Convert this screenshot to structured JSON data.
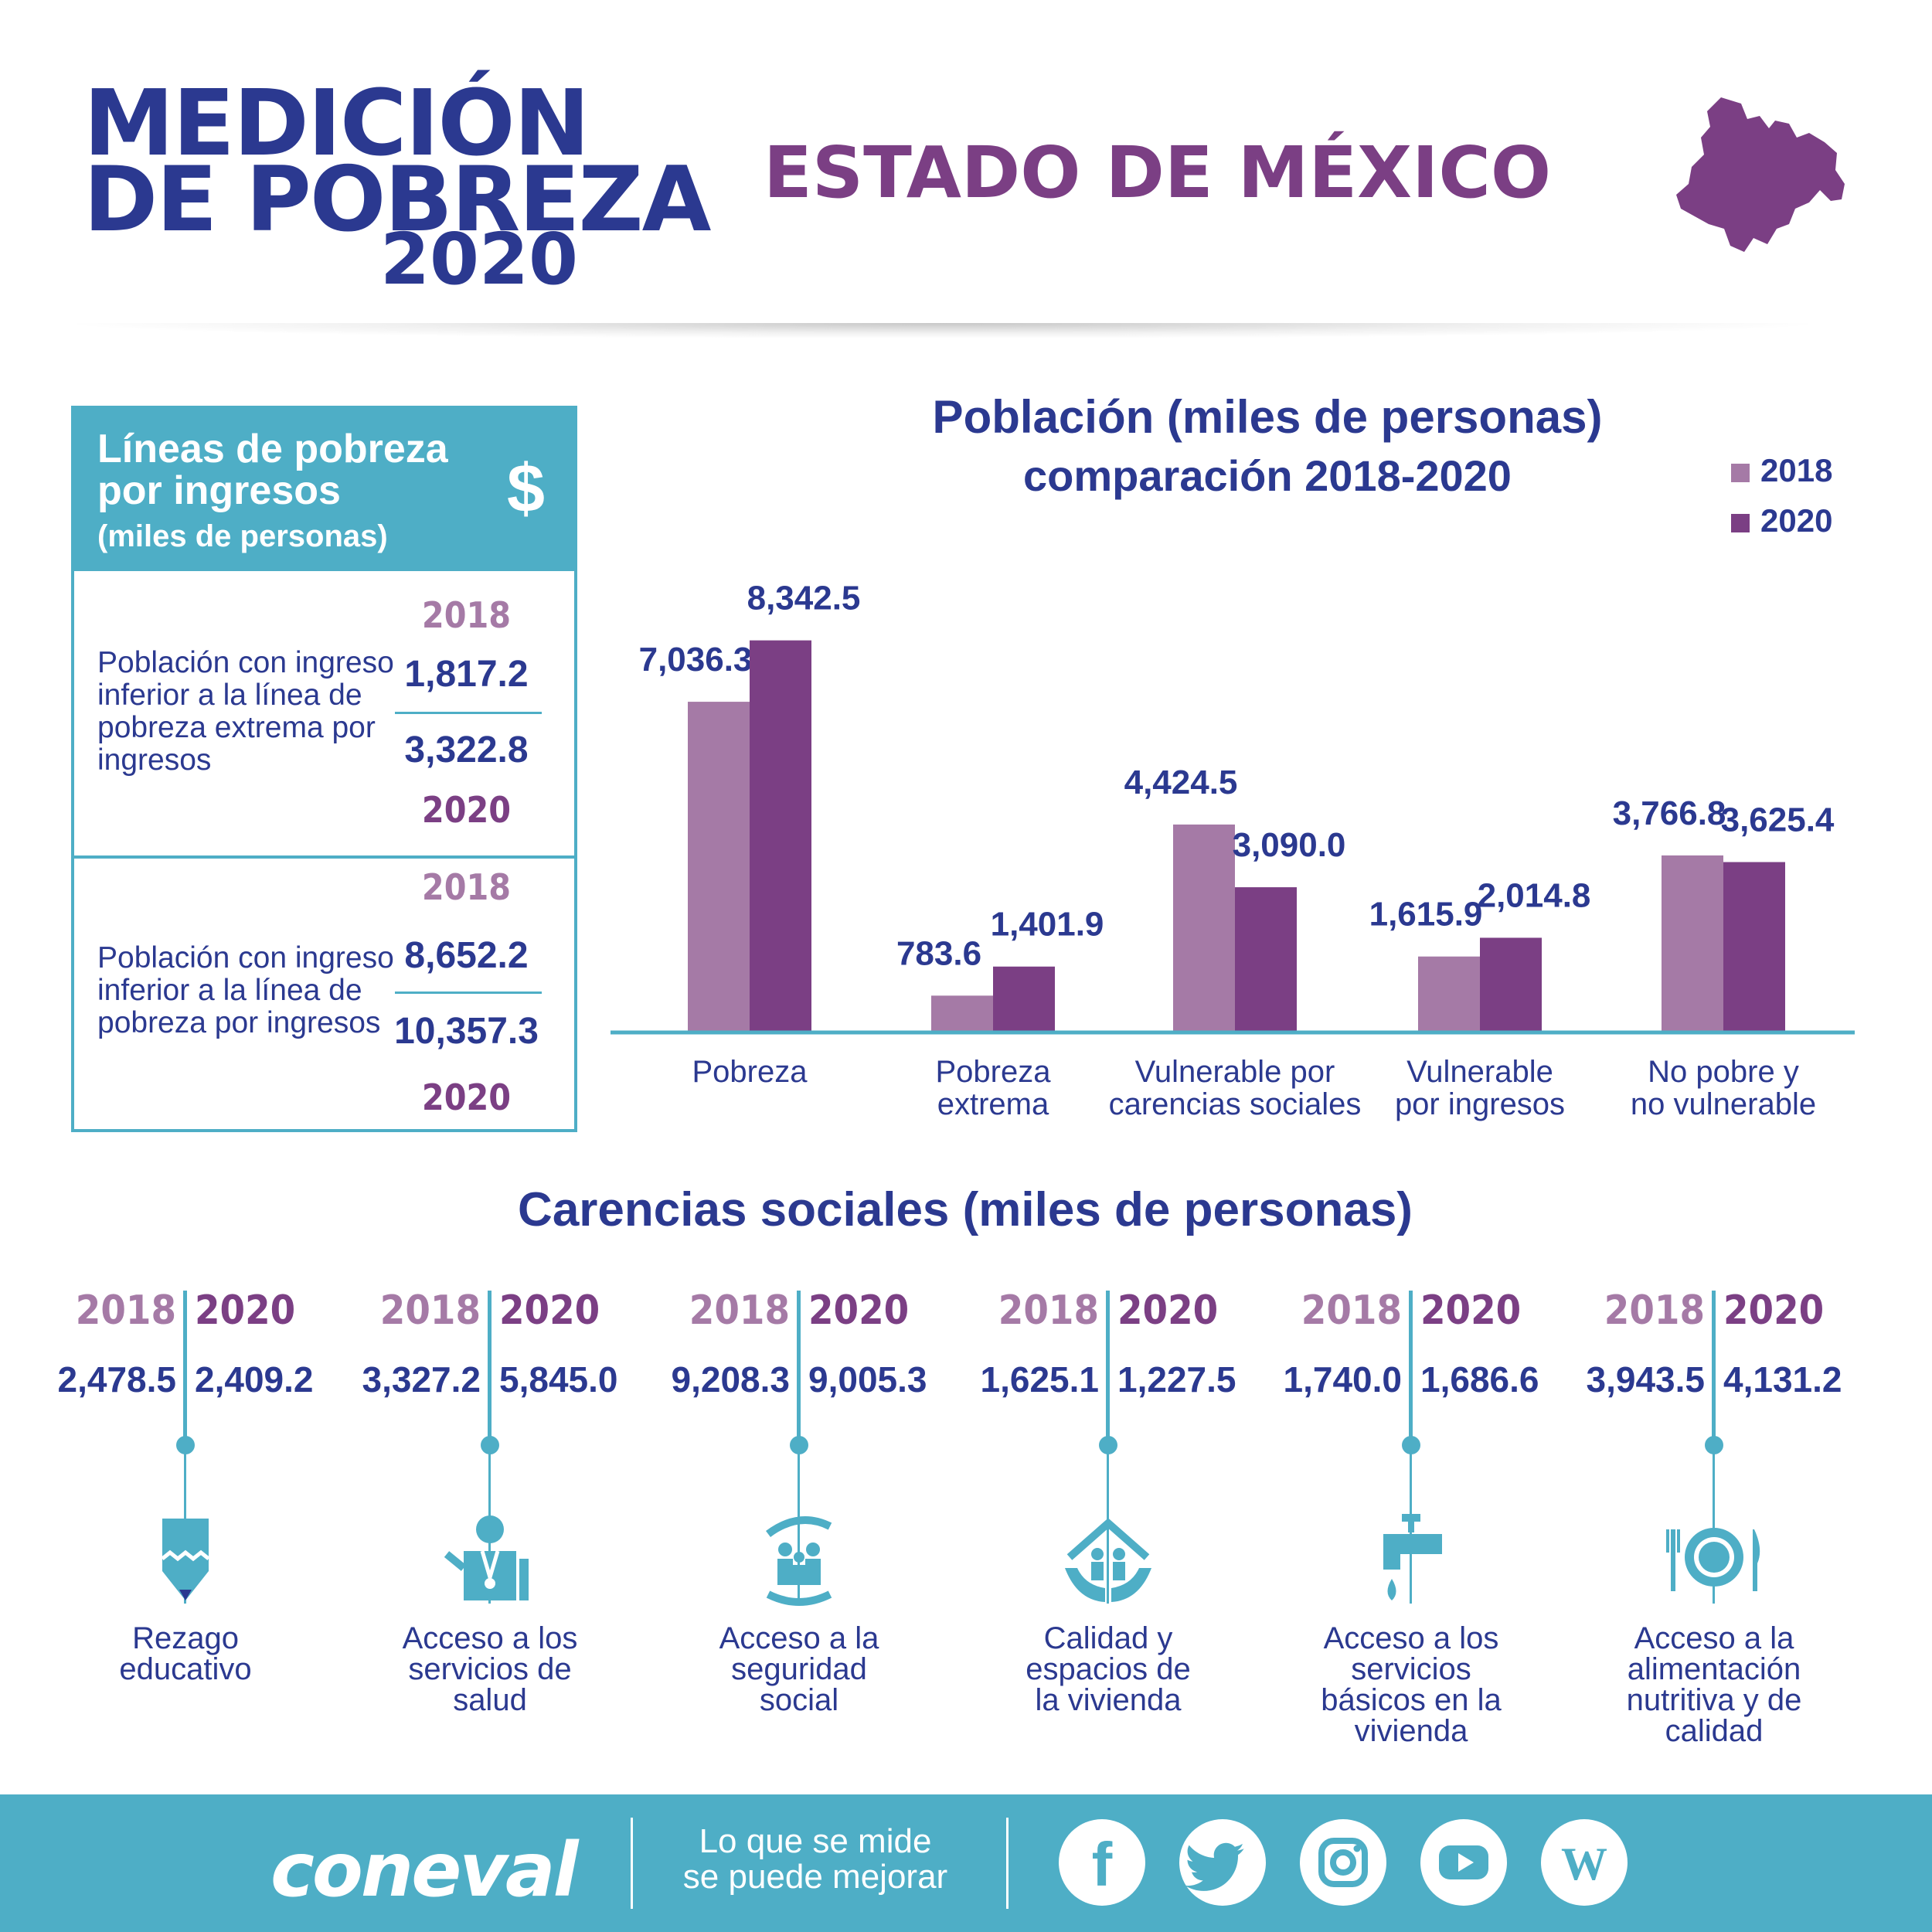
{
  "header": {
    "logo_line1": "MEDICIÓN",
    "logo_line2": "DE POBREZA",
    "logo_year": "2020",
    "state": "ESTADO DE MÉXICO"
  },
  "income_lines": {
    "title_line1": "Líneas de pobreza",
    "title_line2": "por ingresos",
    "title_line3": "(miles de personas)",
    "currency_symbol": "$",
    "rows": [
      {
        "label": "Población con ingreso inferior a la línea de pobreza extrema por ingresos",
        "year_2018": "2018",
        "value_2018": "1,817.2",
        "value_2020": "3,322.8",
        "year_2020": "2020"
      },
      {
        "label": "Población con ingreso inferior a la línea de pobreza por ingresos",
        "year_2018": "2018",
        "value_2018": "8,652.2",
        "value_2020": "10,357.3",
        "year_2020": "2020"
      }
    ]
  },
  "chart_data": {
    "type": "bar",
    "title": "Población (miles de personas)",
    "subtitle": "comparación 2018-2020",
    "categories": [
      "Pobreza",
      "Pobreza extrema",
      "Vulnerable por carencias sociales",
      "Vulnerable por ingresos",
      "No pobre y no vulnerable"
    ],
    "category_lines": [
      [
        "Pobreza"
      ],
      [
        "Pobreza",
        "extrema"
      ],
      [
        "Vulnerable por",
        "carencias sociales"
      ],
      [
        "Vulnerable",
        "por ingresos"
      ],
      [
        "No pobre y",
        "no vulnerable"
      ]
    ],
    "series": [
      {
        "name": "2018",
        "values": [
          7036.3,
          783.6,
          4424.5,
          1615.9,
          3766.8
        ],
        "labels": [
          "7,036.3",
          "783.6",
          "4,424.5",
          "1,615.9",
          "3,766.8"
        ],
        "color": "#a57aa6"
      },
      {
        "name": "2020",
        "values": [
          8342.5,
          1401.9,
          3090.0,
          2014.8,
          3625.4
        ],
        "labels": [
          "8,342.5",
          "1,401.9",
          "3,090.0",
          "2,014.8",
          "3,625.4"
        ],
        "color": "#7b3f84"
      }
    ],
    "ylim": [
      0,
      9800
    ],
    "legend": "top-right",
    "grid": false
  },
  "carencias": {
    "title": "Carencias sociales (miles de personas)",
    "items": [
      {
        "name": "Rezago educativo",
        "lines": [
          "Rezago",
          "educativo"
        ],
        "year_2018": "2018",
        "year_2020": "2020",
        "value_2018": "2,478.5",
        "value_2020": "2,409.2",
        "icon": "pencil-icon"
      },
      {
        "name": "Acceso a los servicios de salud",
        "lines": [
          "Acceso a los",
          "servicios de",
          "salud"
        ],
        "year_2018": "2018",
        "year_2020": "2020",
        "value_2018": "3,327.2",
        "value_2020": "5,845.0",
        "icon": "doctor-icon"
      },
      {
        "name": "Acceso a la seguridad social",
        "lines": [
          "Acceso a la",
          "seguridad",
          "social"
        ],
        "year_2018": "2018",
        "year_2020": "2020",
        "value_2018": "9,208.3",
        "value_2020": "9,005.3",
        "icon": "family-hands-icon"
      },
      {
        "name": "Calidad y espacios de la vivienda",
        "lines": [
          "Calidad y",
          "espacios de",
          "la vivienda"
        ],
        "year_2018": "2018",
        "year_2020": "2020",
        "value_2018": "1,625.1",
        "value_2020": "1,227.5",
        "icon": "house-hands-icon"
      },
      {
        "name": "Acceso a los servicios básicos en la vivienda",
        "lines": [
          "Acceso a los",
          "servicios",
          "básicos en la",
          "vivienda"
        ],
        "year_2018": "2018",
        "year_2020": "2020",
        "value_2018": "1,740.0",
        "value_2020": "1,686.6",
        "icon": "faucet-icon"
      },
      {
        "name": "Acceso a la alimentación nutritiva y de calidad",
        "lines": [
          "Acceso a la",
          "alimentación",
          "nutritiva y de",
          "calidad"
        ],
        "year_2018": "2018",
        "year_2020": "2020",
        "value_2018": "3,943.5",
        "value_2020": "4,131.2",
        "icon": "plate-cutlery-icon"
      }
    ]
  },
  "footer": {
    "brand": "coneval",
    "slogan_line1": "Lo que se mide",
    "slogan_line2": "se puede mejorar",
    "social_icons": [
      "facebook-icon",
      "twitter-icon",
      "instagram-icon",
      "youtube-icon",
      "wordpress-icon"
    ]
  },
  "colors": {
    "navy": "#2b3990",
    "purple_2020": "#7b3f84",
    "lilac_2018": "#a57aa6",
    "teal": "#4eaec6"
  }
}
